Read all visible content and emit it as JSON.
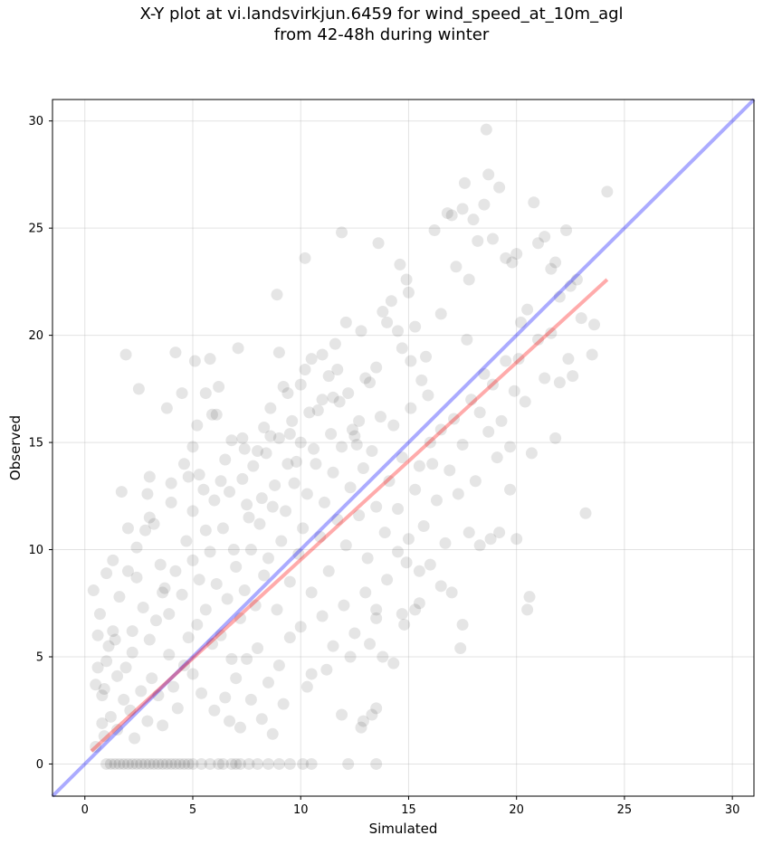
{
  "chart_data": {
    "type": "scatter",
    "title_line1": "X-Y plot at vi.landsvirkjun.6459 for wind_speed_at_10m_agl",
    "title_line2": "from 42-48h during winter",
    "xlabel": "Simulated",
    "ylabel": "Observed",
    "xlim": [
      -1.5,
      31
    ],
    "ylim": [
      -1.5,
      31
    ],
    "xticks": [
      0,
      5,
      10,
      15,
      20,
      25,
      30
    ],
    "yticks": [
      0,
      5,
      10,
      15,
      20,
      25,
      30
    ],
    "grid": true,
    "point_color": "#000000",
    "point_alpha": 0.1,
    "identity_line": {
      "color": "#0000ff",
      "x": [
        -1.5,
        31
      ],
      "y": [
        -1.5,
        31
      ]
    },
    "fit_line": {
      "color": "#ff0000",
      "x": [
        0.3,
        24.2
      ],
      "y": [
        0.6,
        22.6
      ]
    },
    "points": [
      [
        0.4,
        8.1
      ],
      [
        0.5,
        3.7
      ],
      [
        0.6,
        4.5
      ],
      [
        0.8,
        3.2
      ],
      [
        0.9,
        1.3
      ],
      [
        1.0,
        8.9
      ],
      [
        0.7,
        7.0
      ],
      [
        1.1,
        5.5
      ],
      [
        1.3,
        6.2
      ],
      [
        1.5,
        4.1
      ],
      [
        1.7,
        12.7
      ],
      [
        1.9,
        19.1
      ],
      [
        2.0,
        9.0
      ],
      [
        2.2,
        5.2
      ],
      [
        2.4,
        8.7
      ],
      [
        2.5,
        17.5
      ],
      [
        2.8,
        10.9
      ],
      [
        3.0,
        13.4
      ],
      [
        2.9,
        12.6
      ],
      [
        3.2,
        11.2
      ],
      [
        3.5,
        9.3
      ],
      [
        3.7,
        8.2
      ],
      [
        3.8,
        16.6
      ],
      [
        4.0,
        13.1
      ],
      [
        4.2,
        19.2
      ],
      [
        4.5,
        17.3
      ],
      [
        4.8,
        13.4
      ],
      [
        5.0,
        14.8
      ],
      [
        5.1,
        18.8
      ],
      [
        5.3,
        13.5
      ],
      [
        5.5,
        12.8
      ],
      [
        5.6,
        17.3
      ],
      [
        5.8,
        18.9
      ],
      [
        5.9,
        16.3
      ],
      [
        6.1,
        16.3
      ],
      [
        6.5,
        14.2
      ],
      [
        6.8,
        15.1
      ],
      [
        7.1,
        19.4
      ],
      [
        7.3,
        15.2
      ],
      [
        7.5,
        12.1
      ],
      [
        8.0,
        14.6
      ],
      [
        8.3,
        15.7
      ],
      [
        8.6,
        16.6
      ],
      [
        8.9,
        21.9
      ],
      [
        9.0,
        19.2
      ],
      [
        9.2,
        17.6
      ],
      [
        9.5,
        15.4
      ],
      [
        9.8,
        14.1
      ],
      [
        10.0,
        17.7
      ],
      [
        10.2,
        23.6
      ],
      [
        10.5,
        18.9
      ],
      [
        10.8,
        16.5
      ],
      [
        11.0,
        19.1
      ],
      [
        11.3,
        18.1
      ],
      [
        11.5,
        17.1
      ],
      [
        11.7,
        18.4
      ],
      [
        11.9,
        24.8
      ],
      [
        12.1,
        20.6
      ],
      [
        12.4,
        15.6
      ],
      [
        12.7,
        16.0
      ],
      [
        13.0,
        18.0
      ],
      [
        13.2,
        17.8
      ],
      [
        13.5,
        18.5
      ],
      [
        13.6,
        24.3
      ],
      [
        13.8,
        21.1
      ],
      [
        14.0,
        20.6
      ],
      [
        14.2,
        21.6
      ],
      [
        14.5,
        20.2
      ],
      [
        14.7,
        19.4
      ],
      [
        14.9,
        22.6
      ],
      [
        15.1,
        18.8
      ],
      [
        15.3,
        20.4
      ],
      [
        15.6,
        17.9
      ],
      [
        15.8,
        19.0
      ],
      [
        16.0,
        15.0
      ],
      [
        16.2,
        24.9
      ],
      [
        16.5,
        21.0
      ],
      [
        16.8,
        25.7
      ],
      [
        17.0,
        25.6
      ],
      [
        17.2,
        23.2
      ],
      [
        17.5,
        25.9
      ],
      [
        17.6,
        27.1
      ],
      [
        17.8,
        22.6
      ],
      [
        18.0,
        25.4
      ],
      [
        18.2,
        24.4
      ],
      [
        18.5,
        26.1
      ],
      [
        18.6,
        29.6
      ],
      [
        18.7,
        27.5
      ],
      [
        18.9,
        24.5
      ],
      [
        19.2,
        26.9
      ],
      [
        19.5,
        23.6
      ],
      [
        19.8,
        23.4
      ],
      [
        20.0,
        23.8
      ],
      [
        20.2,
        20.6
      ],
      [
        20.5,
        21.2
      ],
      [
        20.8,
        26.2
      ],
      [
        21.0,
        24.3
      ],
      [
        21.3,
        24.6
      ],
      [
        21.6,
        23.1
      ],
      [
        21.8,
        23.4
      ],
      [
        22.0,
        21.8
      ],
      [
        22.3,
        24.9
      ],
      [
        22.5,
        22.3
      ],
      [
        22.8,
        22.6
      ],
      [
        23.5,
        19.1
      ],
      [
        24.2,
        26.7
      ],
      [
        23.2,
        11.7
      ],
      [
        21.8,
        15.2
      ],
      [
        20.6,
        7.8
      ],
      [
        20.5,
        7.2
      ],
      [
        20.0,
        10.5
      ],
      [
        19.7,
        12.8
      ],
      [
        19.2,
        10.8
      ],
      [
        18.8,
        10.5
      ],
      [
        18.3,
        10.2
      ],
      [
        17.8,
        10.8
      ],
      [
        17.5,
        6.5
      ],
      [
        17.4,
        5.4
      ],
      [
        17.0,
        8.0
      ],
      [
        16.5,
        8.3
      ],
      [
        16.0,
        9.3
      ],
      [
        15.5,
        7.5
      ],
      [
        15.3,
        7.2
      ],
      [
        14.8,
        6.5
      ],
      [
        14.7,
        7.0
      ],
      [
        14.3,
        4.7
      ],
      [
        13.8,
        5.0
      ],
      [
        13.5,
        6.8
      ],
      [
        13.5,
        2.6
      ],
      [
        13.3,
        2.3
      ],
      [
        12.8,
        1.7
      ],
      [
        12.9,
        2.0
      ],
      [
        11.9,
        2.3
      ],
      [
        12.2,
        0.0
      ],
      [
        13.5,
        0.0
      ],
      [
        10.5,
        0.0
      ],
      [
        10.1,
        0.0
      ],
      [
        9.5,
        0.0
      ],
      [
        9.0,
        0.0
      ],
      [
        8.5,
        0.0
      ],
      [
        8.0,
        0.0
      ],
      [
        7.6,
        0.0
      ],
      [
        7.2,
        0.0
      ],
      [
        6.8,
        0.0
      ],
      [
        6.4,
        0.0
      ],
      [
        6.2,
        0.0
      ],
      [
        5.0,
        0.0
      ],
      [
        4.8,
        0.0
      ],
      [
        4.6,
        0.0
      ],
      [
        4.4,
        0.0
      ],
      [
        4.2,
        0.0
      ],
      [
        4.0,
        0.0
      ],
      [
        3.8,
        0.0
      ],
      [
        3.6,
        0.0
      ],
      [
        3.4,
        0.0
      ],
      [
        3.2,
        0.0
      ],
      [
        3.0,
        0.0
      ],
      [
        2.8,
        0.0
      ],
      [
        2.6,
        0.0
      ],
      [
        2.4,
        0.0
      ],
      [
        2.2,
        0.0
      ],
      [
        2.0,
        0.0
      ],
      [
        1.8,
        0.0
      ],
      [
        1.6,
        0.0
      ],
      [
        1.4,
        0.0
      ],
      [
        1.2,
        0.0
      ],
      [
        1.0,
        0.0
      ],
      [
        5.4,
        0.0
      ],
      [
        5.8,
        0.0
      ],
      [
        7.0,
        0.0
      ],
      [
        1.2,
        2.2
      ],
      [
        1.5,
        1.6
      ],
      [
        1.8,
        3.0
      ],
      [
        2.1,
        2.5
      ],
      [
        2.3,
        1.2
      ],
      [
        2.6,
        3.4
      ],
      [
        2.9,
        2.0
      ],
      [
        3.1,
        4.0
      ],
      [
        3.4,
        3.2
      ],
      [
        3.6,
        1.8
      ],
      [
        3.9,
        5.1
      ],
      [
        4.1,
        3.6
      ],
      [
        4.3,
        2.6
      ],
      [
        4.6,
        4.6
      ],
      [
        4.8,
        5.9
      ],
      [
        5.0,
        4.2
      ],
      [
        5.2,
        6.5
      ],
      [
        5.4,
        3.3
      ],
      [
        5.6,
        7.2
      ],
      [
        5.9,
        5.6
      ],
      [
        6.1,
        8.4
      ],
      [
        6.3,
        6.0
      ],
      [
        6.6,
        7.7
      ],
      [
        6.8,
        4.9
      ],
      [
        7.0,
        9.2
      ],
      [
        7.2,
        6.8
      ],
      [
        7.4,
        8.1
      ],
      [
        7.7,
        10.0
      ],
      [
        7.9,
        7.4
      ],
      [
        8.1,
        11.2
      ],
      [
        8.3,
        8.8
      ],
      [
        8.5,
        9.6
      ],
      [
        8.7,
        12.0
      ],
      [
        8.9,
        7.2
      ],
      [
        9.1,
        10.4
      ],
      [
        9.3,
        11.8
      ],
      [
        9.5,
        8.5
      ],
      [
        9.7,
        13.1
      ],
      [
        9.9,
        9.8
      ],
      [
        10.1,
        11.0
      ],
      [
        10.3,
        12.6
      ],
      [
        10.5,
        8.0
      ],
      [
        10.7,
        14.0
      ],
      [
        10.9,
        10.6
      ],
      [
        11.1,
        12.2
      ],
      [
        11.3,
        9.0
      ],
      [
        11.5,
        13.6
      ],
      [
        11.7,
        11.4
      ],
      [
        11.9,
        14.8
      ],
      [
        12.1,
        10.2
      ],
      [
        12.3,
        12.9
      ],
      [
        12.5,
        15.3
      ],
      [
        12.7,
        11.6
      ],
      [
        12.9,
        13.8
      ],
      [
        13.1,
        9.6
      ],
      [
        13.3,
        14.6
      ],
      [
        13.5,
        12.0
      ],
      [
        13.7,
        16.2
      ],
      [
        13.9,
        10.8
      ],
      [
        14.1,
        13.2
      ],
      [
        14.3,
        15.8
      ],
      [
        14.5,
        11.9
      ],
      [
        14.7,
        14.3
      ],
      [
        14.9,
        9.4
      ],
      [
        15.1,
        16.6
      ],
      [
        15.3,
        12.8
      ],
      [
        15.5,
        13.9
      ],
      [
        15.7,
        11.1
      ],
      [
        15.9,
        17.2
      ],
      [
        16.1,
        14.0
      ],
      [
        16.3,
        12.3
      ],
      [
        16.5,
        15.6
      ],
      [
        16.7,
        10.3
      ],
      [
        16.9,
        13.7
      ],
      [
        17.1,
        16.1
      ],
      [
        17.3,
        12.6
      ],
      [
        17.5,
        14.9
      ],
      [
        17.7,
        19.8
      ],
      [
        17.9,
        17.0
      ],
      [
        18.1,
        13.2
      ],
      [
        18.3,
        16.4
      ],
      [
        18.5,
        18.2
      ],
      [
        18.7,
        15.5
      ],
      [
        18.9,
        17.7
      ],
      [
        19.1,
        14.3
      ],
      [
        19.3,
        16.0
      ],
      [
        19.5,
        18.8
      ],
      [
        19.7,
        14.8
      ],
      [
        19.9,
        17.4
      ],
      [
        20.1,
        18.9
      ],
      [
        20.4,
        16.9
      ],
      [
        20.7,
        14.5
      ],
      [
        21.0,
        19.8
      ],
      [
        21.3,
        18.0
      ],
      [
        21.6,
        20.1
      ],
      [
        22.0,
        17.8
      ],
      [
        22.4,
        18.9
      ],
      [
        23.0,
        20.8
      ],
      [
        23.6,
        20.5
      ],
      [
        22.6,
        18.1
      ],
      [
        0.5,
        0.8
      ],
      [
        0.8,
        1.9
      ],
      [
        1.0,
        4.8
      ],
      [
        0.9,
        3.5
      ],
      [
        1.4,
        5.8
      ],
      [
        1.9,
        4.5
      ],
      [
        2.2,
        6.2
      ],
      [
        2.7,
        7.3
      ],
      [
        3.0,
        5.8
      ],
      [
        3.3,
        6.7
      ],
      [
        3.6,
        8.0
      ],
      [
        3.9,
        7.0
      ],
      [
        4.2,
        9.0
      ],
      [
        4.5,
        7.9
      ],
      [
        4.7,
        10.4
      ],
      [
        5.0,
        9.5
      ],
      [
        5.3,
        8.6
      ],
      [
        5.6,
        10.9
      ],
      [
        5.8,
        9.9
      ],
      [
        6.0,
        12.3
      ],
      [
        6.4,
        11.0
      ],
      [
        6.7,
        12.7
      ],
      [
        6.9,
        10.0
      ],
      [
        7.3,
        13.3
      ],
      [
        7.6,
        11.5
      ],
      [
        7.8,
        13.9
      ],
      [
        8.2,
        12.4
      ],
      [
        8.4,
        14.5
      ],
      [
        8.8,
        13.0
      ],
      [
        9.0,
        15.2
      ],
      [
        9.4,
        14.0
      ],
      [
        9.6,
        16.0
      ],
      [
        10.0,
        15.0
      ],
      [
        10.4,
        16.4
      ],
      [
        10.6,
        14.7
      ],
      [
        11.0,
        17.0
      ],
      [
        11.4,
        15.4
      ],
      [
        11.8,
        16.9
      ],
      [
        12.2,
        17.3
      ],
      [
        12.6,
        14.9
      ],
      [
        6.0,
        2.5
      ],
      [
        6.5,
        3.1
      ],
      [
        7.0,
        4.0
      ],
      [
        7.5,
        4.9
      ],
      [
        8.0,
        5.4
      ],
      [
        8.5,
        3.8
      ],
      [
        9.0,
        4.6
      ],
      [
        9.5,
        5.9
      ],
      [
        10.0,
        6.4
      ],
      [
        10.5,
        4.2
      ],
      [
        11.0,
        6.9
      ],
      [
        11.5,
        5.5
      ],
      [
        12.0,
        7.4
      ],
      [
        12.5,
        6.1
      ],
      [
        13.0,
        8.0
      ],
      [
        13.5,
        7.2
      ],
      [
        14.0,
        8.6
      ],
      [
        14.5,
        9.9
      ],
      [
        15.0,
        10.5
      ],
      [
        15.5,
        9.0
      ],
      [
        9.2,
        2.8
      ],
      [
        8.7,
        1.4
      ],
      [
        8.2,
        2.1
      ],
      [
        7.7,
        3.0
      ],
      [
        7.2,
        1.7
      ],
      [
        6.7,
        2.0
      ],
      [
        10.3,
        3.6
      ],
      [
        11.2,
        4.4
      ],
      [
        12.3,
        5.0
      ],
      [
        13.2,
        5.6
      ],
      [
        2.0,
        11.0
      ],
      [
        1.3,
        9.5
      ],
      [
        0.6,
        6.0
      ],
      [
        1.6,
        7.8
      ],
      [
        2.4,
        10.1
      ],
      [
        3.0,
        11.5
      ],
      [
        4.0,
        12.2
      ],
      [
        4.6,
        14.0
      ],
      [
        5.2,
        15.8
      ],
      [
        6.2,
        17.6
      ],
      [
        5.0,
        11.8
      ],
      [
        6.3,
        13.2
      ],
      [
        7.4,
        14.7
      ],
      [
        8.6,
        15.3
      ],
      [
        9.4,
        17.3
      ],
      [
        10.2,
        18.4
      ],
      [
        11.6,
        19.6
      ],
      [
        12.8,
        20.2
      ],
      [
        14.6,
        23.3
      ],
      [
        15.0,
        22.0
      ]
    ]
  }
}
